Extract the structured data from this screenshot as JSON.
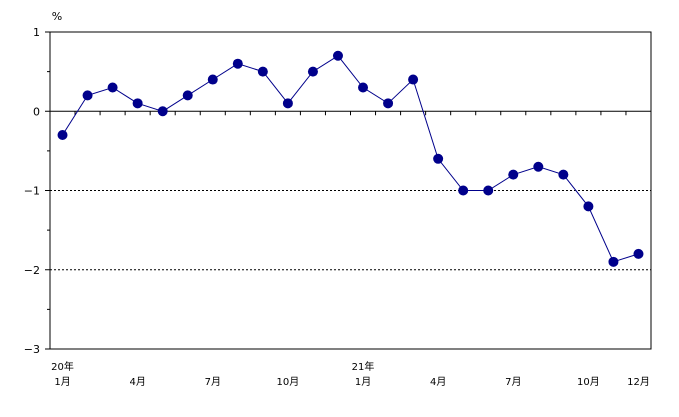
{
  "chart_data": {
    "type": "line",
    "unit_label": "%",
    "ylim": [
      -3,
      1
    ],
    "y_ticks": [
      1,
      0,
      -1,
      -2,
      -3
    ],
    "y_tick_labels": [
      "1",
      "0",
      "−1",
      "−2",
      "−3"
    ],
    "reference_lines": [
      {
        "y": 0,
        "style": "solid"
      },
      {
        "y": -1,
        "style": "dashed"
      },
      {
        "y": -2,
        "style": "dashed"
      }
    ],
    "x": [
      "20年1月",
      "20年2月",
      "20年3月",
      "20年4月",
      "20年5月",
      "20年6月",
      "20年7月",
      "20年8月",
      "20年9月",
      "20年10月",
      "20年11月",
      "20年12月",
      "21年1月",
      "21年2月",
      "21年3月",
      "21年4月",
      "21年5月",
      "21年6月",
      "21年7月",
      "21年8月",
      "21年9月",
      "21年10月",
      "21年11月",
      "21年12月"
    ],
    "x_tick_labels": [
      {
        "index": 0,
        "lines": [
          "20年",
          "1月"
        ]
      },
      {
        "index": 3,
        "lines": [
          "",
          "4月"
        ]
      },
      {
        "index": 6,
        "lines": [
          "",
          "7月"
        ]
      },
      {
        "index": 9,
        "lines": [
          "",
          "10月"
        ]
      },
      {
        "index": 12,
        "lines": [
          "21年",
          "1月"
        ]
      },
      {
        "index": 15,
        "lines": [
          "",
          "4月"
        ]
      },
      {
        "index": 18,
        "lines": [
          "",
          "7月"
        ]
      },
      {
        "index": 21,
        "lines": [
          "",
          "10月"
        ]
      },
      {
        "index": 23,
        "lines": [
          "",
          "12月"
        ]
      }
    ],
    "series": [
      {
        "values": [
          -0.3,
          0.2,
          0.3,
          0.1,
          0.0,
          0.2,
          0.4,
          0.6,
          0.5,
          0.1,
          0.5,
          0.7,
          0.3,
          0.1,
          0.4,
          -0.6,
          -1.0,
          -1.0,
          -0.8,
          -0.7,
          -0.8,
          -1.2,
          -1.9,
          -1.8
        ],
        "color": "#00008b"
      }
    ],
    "grid": false
  }
}
